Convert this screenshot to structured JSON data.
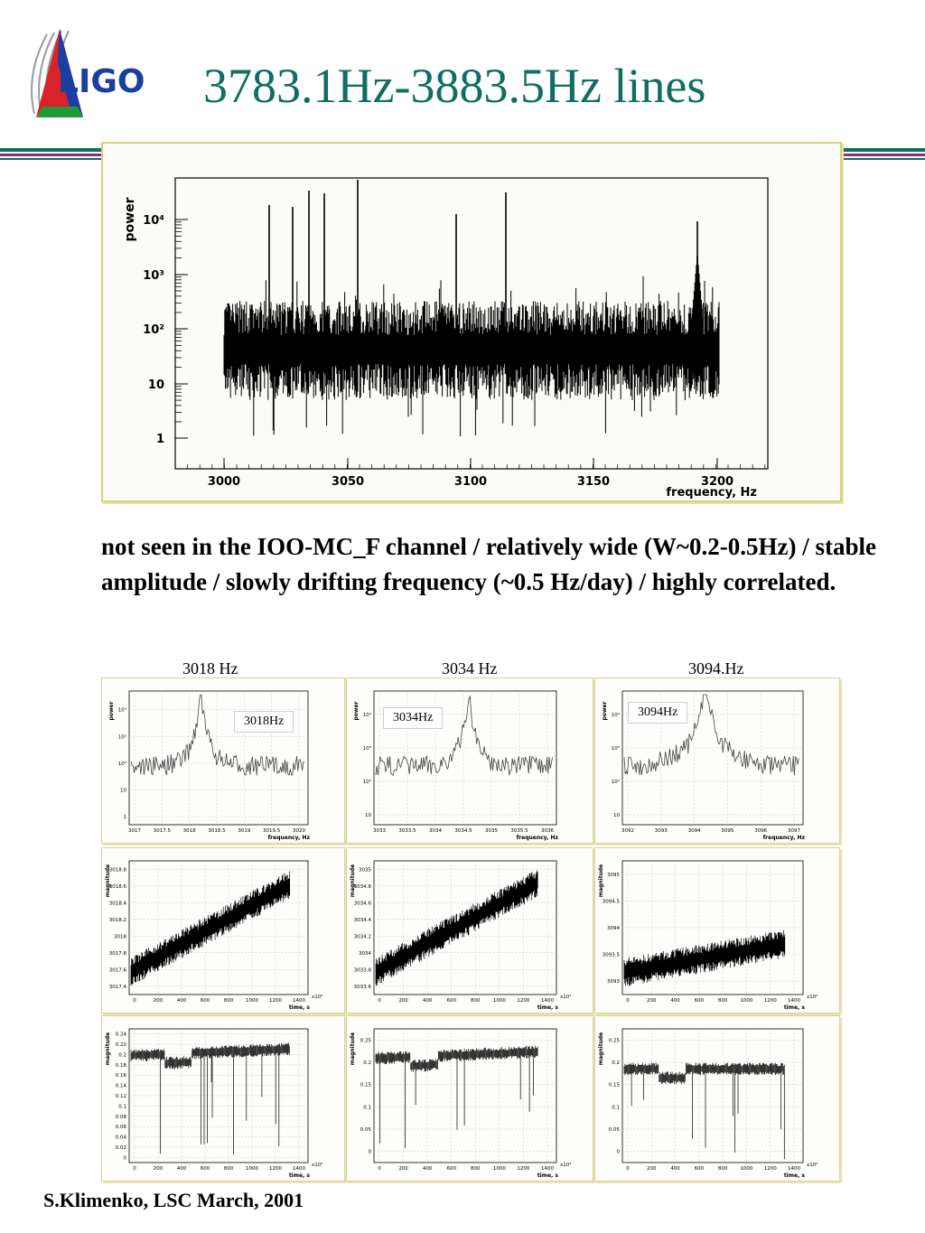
{
  "logo": {
    "text": "LIGO",
    "icon": "ligo-logo-icon"
  },
  "title": "3783.1Hz-3883.5Hz lines",
  "colors": {
    "title": "#0e6e61",
    "band_teal": "#0e6e61",
    "band_purple": "#8e2a8e",
    "panel_border": "#d7d27a",
    "logo_blue": "#1a3ea1",
    "logo_red": "#d8232a",
    "logo_green": "#1f9a3a"
  },
  "main_chart": {
    "ylabel": "power",
    "xlabel": "frequency, Hz",
    "y_ticks": [
      "1",
      "10",
      "10²",
      "10³",
      "10⁴"
    ],
    "x_ticks": [
      "3000",
      "3050",
      "3100",
      "3150",
      "3200"
    ]
  },
  "description": "not seen in the IOO-MC_F channel / relatively wide (W~0.2-0.5Hz) / stable amplitude / slowly drifting frequency (~0.5 Hz/day) / highly correlated.",
  "captions": [
    "3018 Hz",
    "3034 Hz",
    "3094.Hz"
  ],
  "inset_labels": [
    "3018Hz",
    "3034Hz",
    "3094Hz"
  ],
  "small_charts": {
    "spectra": [
      {
        "ylabel": "power",
        "xlabel": "frequency, Hz",
        "y_ticks": [
          "1",
          "10",
          "10²",
          "10³",
          "10⁴"
        ],
        "x_ticks": [
          "3017",
          "3017.5",
          "3018",
          "3018.5",
          "3019",
          "3019.5",
          "3020"
        ]
      },
      {
        "ylabel": "power",
        "xlabel": "frequency, Hz",
        "y_ticks": [
          "10",
          "10²",
          "10³",
          "10⁴"
        ],
        "x_ticks": [
          "3033",
          "3033.5",
          "3034",
          "3034.5",
          "3035",
          "3035.5",
          "3036"
        ]
      },
      {
        "ylabel": "power",
        "xlabel": "frequency, Hz",
        "y_ticks": [
          "10",
          "10²",
          "10³",
          "10⁴"
        ],
        "x_ticks": [
          "3092",
          "3093",
          "3094",
          "3095",
          "3096",
          "3097"
        ]
      }
    ],
    "frequency_vs_time": [
      {
        "ylabel": "magnitude",
        "xlabel": "time, s",
        "x_exp": "x10²",
        "y_ticks": [
          "3017.4",
          "3017.6",
          "3017.8",
          "3018",
          "3018.2",
          "3018.4",
          "3018.6",
          "3018.8"
        ],
        "x_ticks": [
          "0",
          "200",
          "400",
          "600",
          "800",
          "1000",
          "1200",
          "1400"
        ]
      },
      {
        "ylabel": "magnitude",
        "xlabel": "time, s",
        "x_exp": "x10²",
        "y_ticks": [
          "3033.6",
          "3033.8",
          "3034",
          "3034.2",
          "3034.4",
          "3034.6",
          "3034.8",
          "3035"
        ],
        "x_ticks": [
          "0",
          "200",
          "400",
          "600",
          "800",
          "1000",
          "1200",
          "1400"
        ]
      },
      {
        "ylabel": "magnitude",
        "xlabel": "time, s",
        "x_exp": "x10²",
        "y_ticks": [
          "3093",
          "3093.5",
          "3094",
          "3094.5",
          "3095"
        ],
        "x_ticks": [
          "0",
          "200",
          "400",
          "600",
          "800",
          "1000",
          "1200",
          "1400"
        ]
      }
    ],
    "magnitude_vs_time": [
      {
        "ylabel": "magnitude",
        "xlabel": "time, s",
        "x_exp": "x10²",
        "y_ticks": [
          "0",
          "0.02",
          "0.04",
          "0.06",
          "0.08",
          "0.1",
          "0.12",
          "0.14",
          "0.16",
          "0.18",
          "0.2",
          "0.22",
          "0.24"
        ],
        "x_ticks": [
          "0",
          "200",
          "400",
          "600",
          "800",
          "1000",
          "1200",
          "1400"
        ]
      },
      {
        "ylabel": "magnitude",
        "xlabel": "time, s",
        "x_exp": "x10²",
        "y_ticks": [
          "0",
          "0.05",
          "0.1",
          "0.15",
          "0.2",
          "0.25"
        ],
        "x_ticks": [
          "0",
          "200",
          "400",
          "600",
          "800",
          "1000",
          "1200",
          "1400"
        ]
      },
      {
        "ylabel": "magnitude",
        "xlabel": "time, s",
        "x_exp": "x10²",
        "y_ticks": [
          "0",
          "0.05",
          "0.1",
          "0.15",
          "0.2",
          "0.25"
        ],
        "x_ticks": [
          "0",
          "200",
          "400",
          "600",
          "800",
          "1000",
          "1200",
          "1400"
        ]
      }
    ]
  },
  "footer": "S.Klimenko, LSC March, 2001"
}
